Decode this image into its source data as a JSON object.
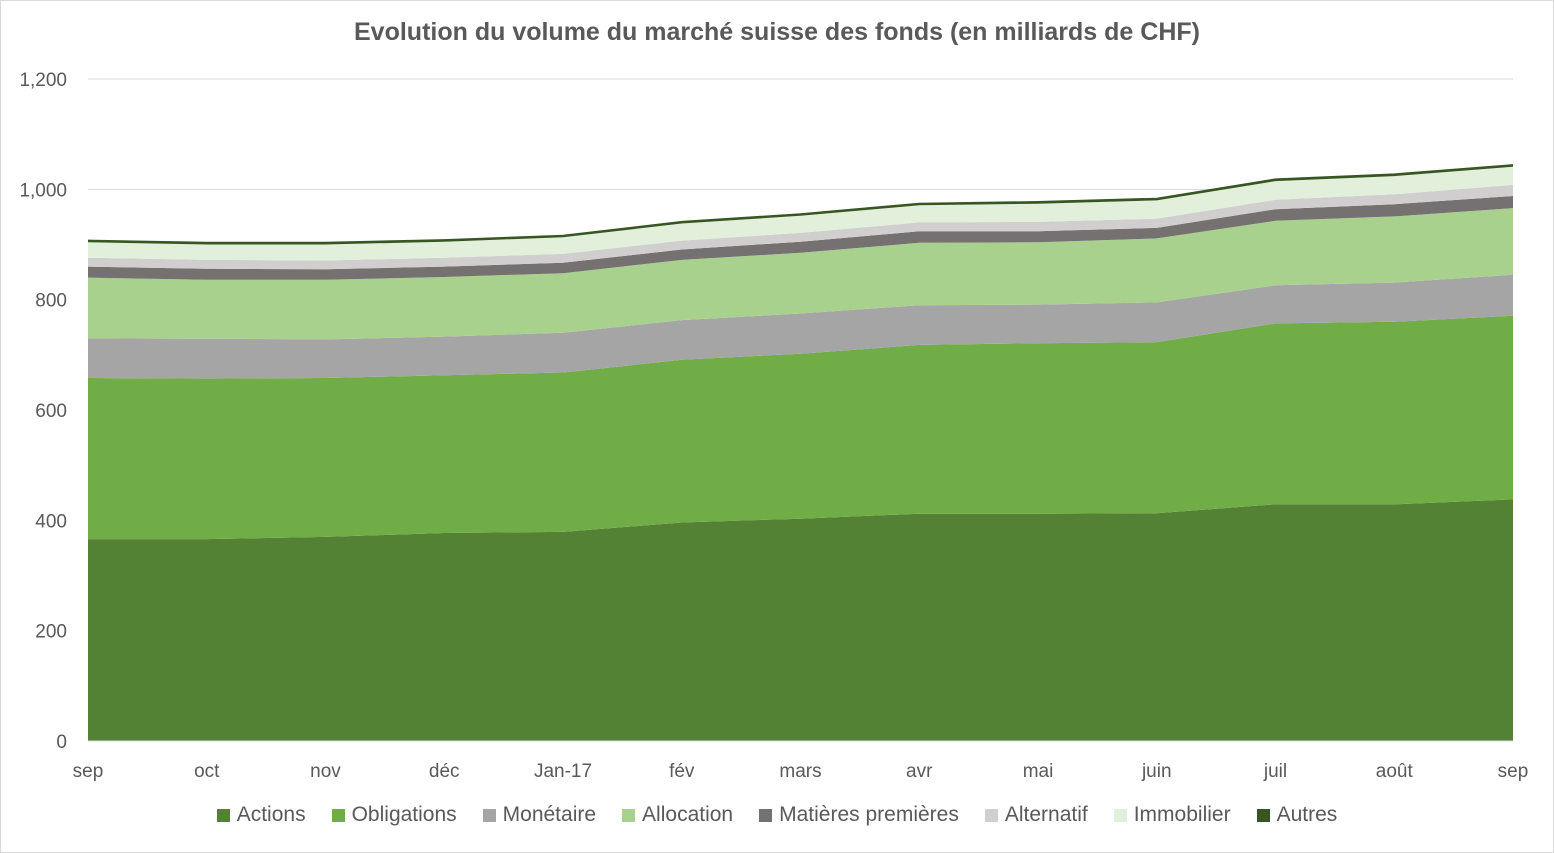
{
  "chart_data": {
    "type": "area",
    "stacked": true,
    "title": "Evolution du volume du marché suisse des fonds (en milliards de CHF)",
    "xlabel": "",
    "ylabel": "",
    "categories": [
      "sep",
      "oct",
      "nov",
      "déc",
      "Jan-17",
      "fév",
      "mars",
      "avr",
      "mai",
      "juin",
      "juil",
      "août",
      "sep"
    ],
    "ylim": [
      0,
      1200
    ],
    "yticks": [
      0,
      200,
      400,
      600,
      800,
      1000,
      1200
    ],
    "ytick_labels": [
      "0",
      "200",
      "400",
      "600",
      "800",
      "1,000",
      "1,200"
    ],
    "grid": true,
    "legend_position": "bottom",
    "series": [
      {
        "name": "Actions",
        "color": "#548235",
        "values": [
          366,
          366,
          370,
          377,
          379,
          396,
          403,
          412,
          412,
          413,
          429,
          429,
          438
        ]
      },
      {
        "name": "Obligations",
        "color": "#70ad47",
        "values": [
          292,
          291,
          288,
          286,
          289,
          295,
          299,
          306,
          309,
          310,
          328,
          331,
          333
        ]
      },
      {
        "name": "Monétaire",
        "color": "#a5a5a5",
        "values": [
          72,
          72,
          70,
          70,
          72,
          72,
          73,
          72,
          70,
          72,
          69,
          71,
          74
        ]
      },
      {
        "name": "Allocation",
        "color": "#a9d18e",
        "values": [
          110,
          107,
          108,
          108,
          108,
          109,
          110,
          113,
          113,
          116,
          117,
          120,
          121
        ]
      },
      {
        "name": "Matières premières",
        "color": "#767171",
        "values": [
          20,
          20,
          19,
          19,
          19,
          19,
          20,
          21,
          20,
          19,
          21,
          22,
          22
        ]
      },
      {
        "name": "Alternatif",
        "color": "#d0cece",
        "values": [
          16,
          16,
          16,
          16,
          16,
          16,
          16,
          16,
          17,
          17,
          17,
          18,
          20
        ]
      },
      {
        "name": "Immobilier",
        "color": "#e2efda",
        "values": [
          28,
          28,
          29,
          29,
          30,
          31,
          31,
          31,
          33,
          33,
          34,
          33,
          33
        ]
      },
      {
        "name": "Autres",
        "color": "#375623",
        "values": [
          3,
          3,
          3,
          3,
          3,
          3,
          3,
          3,
          3,
          3,
          3,
          3,
          3
        ]
      }
    ]
  }
}
